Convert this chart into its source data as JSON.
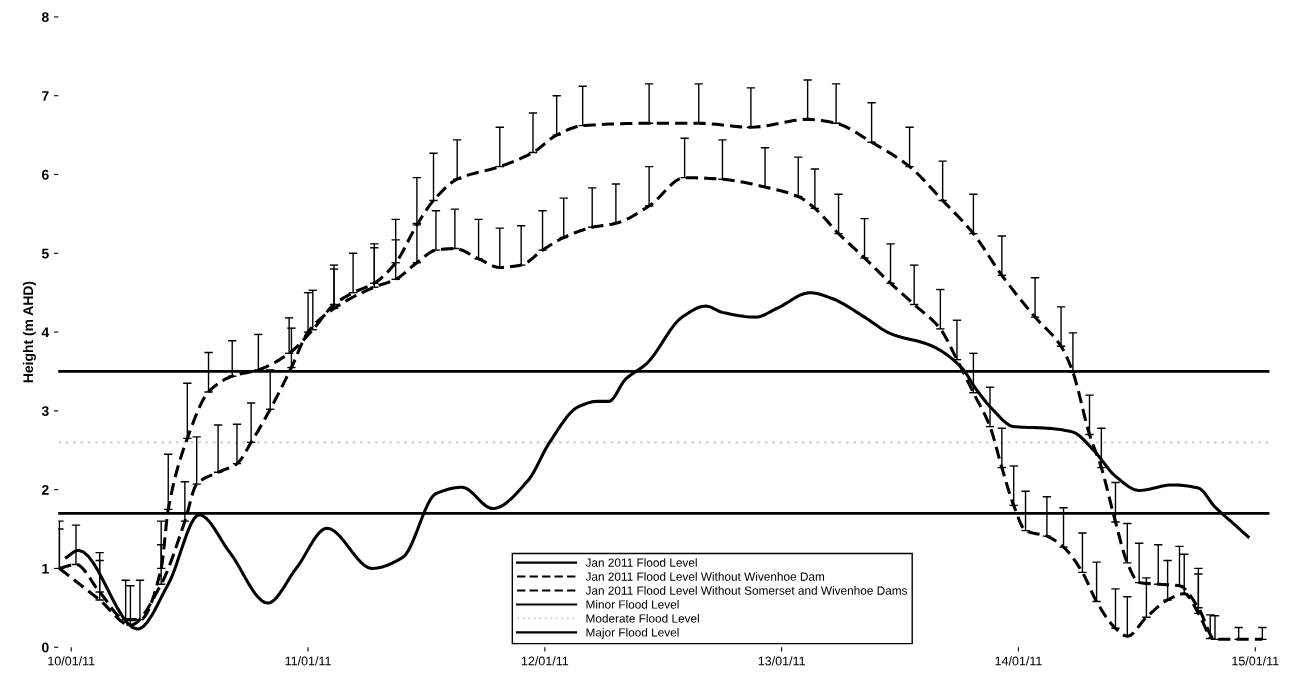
{
  "chart_data": {
    "type": "line",
    "ylabel": "Height (m AHD)",
    "xlim": [
      "2011-01-09T22:41",
      "2011-01-15T01:26"
    ],
    "ylim": [
      0,
      8
    ],
    "xticks": [
      {
        "value": "2011-01-10",
        "label": "10/01/11"
      },
      {
        "value": "2011-01-11",
        "label": "11/01/11"
      },
      {
        "value": "2011-01-12",
        "label": "12/01/11"
      },
      {
        "value": "2011-01-13",
        "label": "13/01/11"
      },
      {
        "value": "2011-01-14",
        "label": "14/01/11"
      },
      {
        "value": "2011-01-15",
        "label": "15/01/11"
      }
    ],
    "yticks": [
      0,
      1,
      2,
      3,
      4,
      5,
      6,
      7,
      8
    ],
    "grid": false,
    "legend": "bottom",
    "marker": "none",
    "series": [
      {
        "name": "Jan 2011 Flood Level",
        "color": "#000000",
        "line_style": "solid",
        "x": [
          "2011-01-09T23:31",
          "2011-01-10T00:43",
          "2011-01-10T06:43",
          "2011-01-10T09:50",
          "2011-01-10T12:58",
          "2011-01-10T16:05",
          "2011-01-10T19:55",
          "2011-01-10T22:48",
          "2011-01-11T01:55",
          "2011-01-11T06:29",
          "2011-01-11T09:36",
          "2011-01-11T12:58",
          "2011-01-11T15:36",
          "2011-01-11T18:43",
          "2011-01-11T22:19",
          "2011-01-12T00:29",
          "2011-01-12T03:22",
          "2011-01-12T05:17",
          "2011-01-12T06:29",
          "2011-01-12T08:10",
          "2011-01-12T10:19",
          "2011-01-12T13:55",
          "2011-01-12T16:19",
          "2011-01-12T18:00",
          "2011-01-12T21:22",
          "2011-01-12T23:31",
          "2011-01-13T02:53",
          "2011-01-13T05:02",
          "2011-01-13T08:24",
          "2011-01-13T11:02",
          "2011-01-13T15:07",
          "2011-01-13T18:14",
          "2011-01-13T19:41",
          "2011-01-13T21:22",
          "2011-01-13T23:31",
          "2011-01-14T02:53",
          "2011-01-14T05:31",
          "2011-01-14T07:41",
          "2011-01-14T09:50",
          "2011-01-14T12:14",
          "2011-01-14T15:36",
          "2011-01-14T18:14",
          "2011-01-14T19:55",
          "2011-01-14T21:36",
          "2011-01-14T23:17"
        ],
        "values": [
          1.14,
          1.23,
          0.23,
          0.8,
          1.68,
          1.2,
          0.56,
          1.0,
          1.51,
          1.0,
          1.14,
          1.95,
          2.03,
          1.76,
          2.12,
          2.6,
          3.05,
          3.12,
          3.12,
          3.4,
          3.6,
          4.19,
          4.33,
          4.25,
          4.19,
          4.3,
          4.5,
          4.43,
          4.19,
          3.98,
          3.83,
          3.55,
          3.28,
          3.02,
          2.8,
          2.78,
          2.73,
          2.49,
          2.17,
          1.99,
          2.06,
          2.02,
          1.78,
          1.59,
          1.4
        ]
      },
      {
        "name": "Jan 2011 Flood Level Without Wivenhoe Dam",
        "color": "#000000",
        "line_style": "dashed",
        "x": [
          "2011-01-09T22:48",
          "2011-01-10T02:53",
          "2011-01-10T06:00",
          "2011-01-10T09:07",
          "2011-01-10T11:31",
          "2011-01-10T12:43",
          "2011-01-10T14:53",
          "2011-01-10T16:48",
          "2011-01-10T18:14",
          "2011-01-10T20:10",
          "2011-01-10T22:19",
          "2011-01-11T00:00",
          "2011-01-11T02:38",
          "2011-01-11T06:43",
          "2011-01-11T08:53",
          "2011-01-11T11:02",
          "2011-01-11T12:58",
          "2011-01-11T14:53",
          "2011-01-11T17:17",
          "2011-01-11T19:26",
          "2011-01-11T21:36",
          "2011-01-11T23:46",
          "2011-01-12T01:55",
          "2011-01-12T04:48",
          "2011-01-12T07:12",
          "2011-01-12T10:34",
          "2011-01-12T14:10",
          "2011-01-12T18:00",
          "2011-01-12T22:19",
          "2011-01-13T01:41",
          "2011-01-13T03:22",
          "2011-01-13T05:46",
          "2011-01-13T08:24",
          "2011-01-13T11:02",
          "2011-01-13T13:26",
          "2011-01-13T16:05",
          "2011-01-13T17:46",
          "2011-01-13T19:26",
          "2011-01-13T21:07",
          "2011-01-13T22:19",
          "2011-01-13T23:31",
          "2011-01-14T00:43",
          "2011-01-14T02:53",
          "2011-01-14T04:34",
          "2011-01-14T06:29",
          "2011-01-14T07:55",
          "2011-01-14T09:50",
          "2011-01-14T11:02",
          "2011-01-14T12:58",
          "2011-01-14T15:07",
          "2011-01-14T16:48",
          "2011-01-14T18:14",
          "2011-01-14T19:26"
        ],
        "values": [
          1.0,
          0.6,
          0.28,
          0.8,
          1.6,
          2.07,
          2.22,
          2.33,
          2.6,
          3.02,
          3.55,
          4.0,
          4.3,
          4.57,
          4.67,
          4.88,
          5.04,
          5.06,
          4.93,
          4.82,
          4.85,
          5.04,
          5.2,
          5.33,
          5.38,
          5.6,
          5.96,
          5.94,
          5.84,
          5.72,
          5.57,
          5.25,
          4.94,
          4.62,
          4.35,
          4.04,
          3.65,
          3.23,
          2.8,
          2.28,
          1.8,
          1.48,
          1.41,
          1.27,
          0.95,
          0.58,
          0.24,
          0.14,
          0.38,
          0.6,
          0.68,
          0.43,
          0.11
        ],
        "errors": [
          [
            1.0,
            1.6
          ],
          [
            0.6,
            1.1
          ],
          [
            0.28,
            0.78
          ],
          [
            0.8,
            1.3
          ],
          [
            1.6,
            2.1
          ],
          [
            2.07,
            2.67
          ],
          [
            2.22,
            2.82
          ],
          [
            2.33,
            2.83
          ],
          [
            2.6,
            3.1
          ],
          [
            3.02,
            3.52
          ],
          [
            3.55,
            4.05
          ],
          [
            4.0,
            4.5
          ],
          [
            4.3,
            4.8
          ],
          [
            4.57,
            5.07
          ],
          [
            4.67,
            5.17
          ],
          [
            4.88,
            5.38
          ],
          [
            5.04,
            5.54
          ],
          [
            5.06,
            5.56
          ],
          [
            4.93,
            5.43
          ],
          [
            4.82,
            5.32
          ],
          [
            4.85,
            5.35
          ],
          [
            5.04,
            5.54
          ],
          [
            5.2,
            5.7
          ],
          [
            5.33,
            5.83
          ],
          [
            5.38,
            5.88
          ],
          [
            5.6,
            6.1
          ],
          [
            5.96,
            6.46
          ],
          [
            5.94,
            6.44
          ],
          [
            5.84,
            6.34
          ],
          [
            5.72,
            6.22
          ],
          [
            5.57,
            6.07
          ],
          [
            5.25,
            5.75
          ],
          [
            4.94,
            5.44
          ],
          [
            4.62,
            5.12
          ],
          [
            4.35,
            4.85
          ],
          [
            4.04,
            4.54
          ],
          [
            3.65,
            4.15
          ],
          [
            3.23,
            3.73
          ],
          [
            2.8,
            3.3
          ],
          [
            2.28,
            2.78
          ],
          [
            1.8,
            2.3
          ],
          [
            1.48,
            1.98
          ],
          [
            1.41,
            1.91
          ],
          [
            1.27,
            1.77
          ],
          [
            0.95,
            1.45
          ],
          [
            0.58,
            1.08
          ],
          [
            0.24,
            0.74
          ],
          [
            0.14,
            0.64
          ],
          [
            0.38,
            0.88
          ],
          [
            0.6,
            1.1
          ],
          [
            0.68,
            1.18
          ],
          [
            0.43,
            0.93
          ],
          [
            0.11,
            0.41
          ]
        ]
      },
      {
        "name": "Jan 2011 Flood Level Without Somerset and Wivenhoe Dams",
        "color": "#000000",
        "line_style": "dashed",
        "x": [
          "2011-01-09T22:48",
          "2011-01-10T00:29",
          "2011-01-10T02:53",
          "2011-01-10T05:31",
          "2011-01-10T06:58",
          "2011-01-10T09:07",
          "2011-01-10T09:50",
          "2011-01-10T11:46",
          "2011-01-10T13:55",
          "2011-01-10T16:19",
          "2011-01-10T18:58",
          "2011-01-10T22:05",
          "2011-01-11T00:29",
          "2011-01-11T02:38",
          "2011-01-11T04:34",
          "2011-01-11T06:43",
          "2011-01-11T08:53",
          "2011-01-11T11:02",
          "2011-01-11T12:43",
          "2011-01-11T15:07",
          "2011-01-11T19:26",
          "2011-01-11T22:48",
          "2011-01-12T01:12",
          "2011-01-12T03:50",
          "2011-01-12T10:34",
          "2011-01-12T15:36",
          "2011-01-12T20:53",
          "2011-01-13T02:38",
          "2011-01-13T05:31",
          "2011-01-13T09:07",
          "2011-01-13T12:58",
          "2011-01-13T16:19",
          "2011-01-13T19:26",
          "2011-01-13T22:19",
          "2011-01-14T01:41",
          "2011-01-14T04:19",
          "2011-01-14T05:31",
          "2011-01-14T07:12",
          "2011-01-14T08:24",
          "2011-01-14T09:50",
          "2011-01-14T11:02",
          "2011-01-14T12:14",
          "2011-01-14T14:10",
          "2011-01-14T16:19",
          "2011-01-14T18:14",
          "2011-01-14T19:55",
          "2011-01-14T22:19",
          "2011-01-15T00:43"
        ],
        "values": [
          1.0,
          1.05,
          0.7,
          0.35,
          0.35,
          1.0,
          1.75,
          2.65,
          3.24,
          3.44,
          3.52,
          3.73,
          4.03,
          4.35,
          4.5,
          4.62,
          4.88,
          5.36,
          5.67,
          5.94,
          6.1,
          6.28,
          6.5,
          6.62,
          6.65,
          6.65,
          6.6,
          6.7,
          6.65,
          6.41,
          6.1,
          5.67,
          5.25,
          4.72,
          4.19,
          3.82,
          3.49,
          2.7,
          2.28,
          1.59,
          1.07,
          0.82,
          0.8,
          0.78,
          0.5,
          0.1,
          0.1,
          0.1
        ],
        "errors": [
          [
            1.0,
            1.5
          ],
          [
            1.05,
            1.55
          ],
          [
            0.7,
            1.2
          ],
          [
            0.35,
            0.85
          ],
          [
            0.35,
            0.85
          ],
          [
            1.0,
            1.6
          ],
          [
            1.75,
            2.45
          ],
          [
            2.65,
            3.35
          ],
          [
            3.24,
            3.74
          ],
          [
            3.44,
            3.89
          ],
          [
            3.52,
            3.97
          ],
          [
            3.73,
            4.18
          ],
          [
            4.03,
            4.53
          ],
          [
            4.35,
            4.85
          ],
          [
            4.5,
            5.0
          ],
          [
            4.62,
            5.12
          ],
          [
            4.88,
            5.43
          ],
          [
            5.36,
            5.96
          ],
          [
            5.67,
            6.27
          ],
          [
            5.94,
            6.44
          ],
          [
            6.1,
            6.6
          ],
          [
            6.28,
            6.78
          ],
          [
            6.5,
            7.0
          ],
          [
            6.62,
            7.12
          ],
          [
            6.65,
            7.15
          ],
          [
            6.65,
            7.15
          ],
          [
            6.6,
            7.1
          ],
          [
            6.7,
            7.2
          ],
          [
            6.65,
            7.15
          ],
          [
            6.41,
            6.91
          ],
          [
            6.1,
            6.6
          ],
          [
            5.67,
            6.17
          ],
          [
            5.25,
            5.75
          ],
          [
            4.72,
            5.22
          ],
          [
            4.19,
            4.69
          ],
          [
            3.82,
            4.32
          ],
          [
            3.49,
            3.99
          ],
          [
            2.7,
            3.2
          ],
          [
            2.28,
            2.78
          ],
          [
            1.59,
            2.09
          ],
          [
            1.07,
            1.57
          ],
          [
            0.82,
            1.32
          ],
          [
            0.8,
            1.3
          ],
          [
            0.78,
            1.28
          ],
          [
            0.5,
            1.0
          ],
          [
            0.1,
            0.4
          ],
          [
            0.1,
            0.25
          ],
          [
            0.1,
            0.25
          ]
        ]
      }
    ],
    "ref_lines": [
      {
        "axis": "y",
        "value": 1.7,
        "label": "Minor Flood Level",
        "color": "#000000",
        "line_style": "solid"
      },
      {
        "axis": "y",
        "value": 2.6,
        "label": "Moderate Flood Level",
        "color": "#d9d9d9",
        "line_style": "dotted"
      },
      {
        "axis": "y",
        "value": 3.5,
        "label": "Major Flood Level",
        "color": "#000000",
        "line_style": "solid"
      }
    ]
  }
}
